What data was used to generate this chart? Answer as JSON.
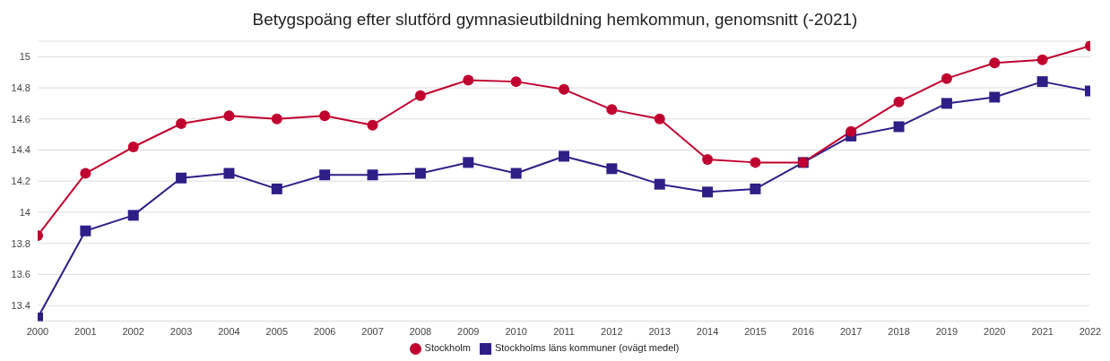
{
  "chart_data": {
    "type": "line",
    "title": "Betygspoäng efter slutförd gymnasieutbildning hemkommun, genomsnitt (-2021)",
    "categories": [
      "2000",
      "2001",
      "2002",
      "2003",
      "2004",
      "2005",
      "2006",
      "2007",
      "2008",
      "2009",
      "2010",
      "2011",
      "2012",
      "2013",
      "2014",
      "2015",
      "2016",
      "2017",
      "2018",
      "2019",
      "2020",
      "2021",
      "2022"
    ],
    "series": [
      {
        "name": "Stockholm",
        "color": "#c0002f",
        "marker": "circle",
        "values": [
          13.85,
          14.25,
          14.42,
          14.57,
          14.62,
          14.6,
          14.62,
          14.56,
          14.75,
          14.85,
          14.84,
          14.79,
          14.66,
          14.6,
          14.34,
          14.32,
          14.32,
          14.52,
          14.71,
          14.86,
          14.96,
          14.98,
          15.07
        ]
      },
      {
        "name": "Stockholms läns kommuner (ovägt medel)",
        "color": "#2e1f87",
        "marker": "square",
        "values": [
          13.32,
          13.88,
          13.98,
          14.22,
          14.25,
          14.15,
          14.24,
          14.24,
          14.25,
          14.32,
          14.25,
          14.36,
          14.28,
          14.18,
          14.13,
          14.15,
          14.32,
          14.49,
          14.55,
          14.7,
          14.74,
          14.84,
          14.78
        ]
      }
    ],
    "ylim": [
      13.3,
      15.1
    ],
    "yticks": [
      13.4,
      13.6,
      13.8,
      14,
      14.2,
      14.4,
      14.6,
      14.8,
      15
    ],
    "grid": "y",
    "legend": "bottom",
    "line_style": "solid"
  }
}
